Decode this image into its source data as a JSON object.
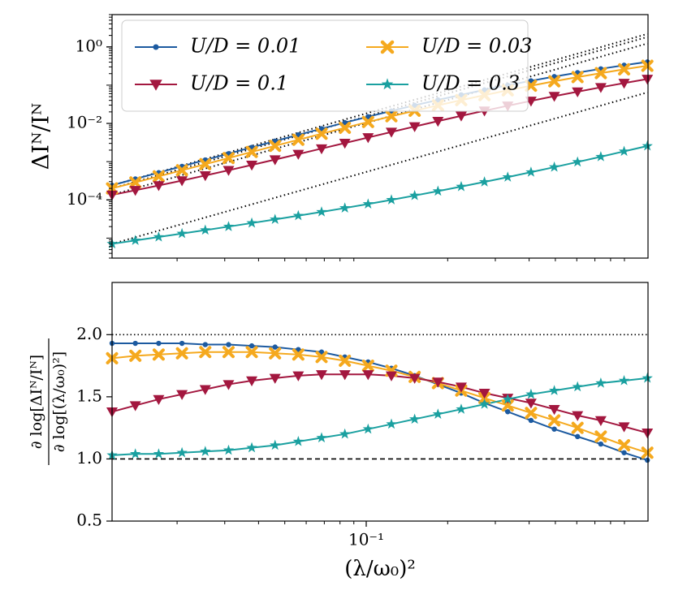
{
  "chart_data": [
    {
      "type": "line",
      "xscale": "log",
      "yscale": "log",
      "y_label": "ΔIᴺ/Iᴺ",
      "x": [
        0.0115,
        0.01402,
        0.0171,
        0.02085,
        0.02542,
        0.03099,
        0.03776,
        0.04603,
        0.0561,
        0.06839,
        0.08337,
        0.1016,
        0.1239,
        0.151,
        0.1841,
        0.2244,
        0.2735,
        0.3334,
        0.4064,
        0.4955,
        0.6039,
        0.7362,
        0.8974,
        1.094
      ],
      "xlim": [
        0.0115,
        1.1
      ],
      "ylim": [
        3e-06,
        7
      ],
      "yticks": [
        {
          "value": 1,
          "label": "10⁰"
        },
        {
          "value": 0.01,
          "label": "10⁻²"
        },
        {
          "value": 0.0001,
          "label": "10⁻⁴"
        }
      ],
      "legend": "upper left",
      "legend_columns": 2,
      "series": [
        {
          "name": "U/D = 0.01",
          "color": "#1c5aa0",
          "marker": "circle",
          "values": [
            0.00024,
            0.000352,
            0.000515,
            0.000755,
            0.001107,
            0.001618,
            0.002366,
            0.003451,
            0.00502,
            0.00728,
            0.01047,
            0.01496,
            0.02118,
            0.02972,
            0.04111,
            0.05598,
            0.07534,
            0.09954,
            0.13,
            0.1675,
            0.2128,
            0.2673,
            0.3319,
            0.4055
          ]
        },
        {
          "name": "U/D = 0.03",
          "color": "#f5a91e",
          "marker": "x",
          "values": [
            0.0002,
            0.000286,
            0.000412,
            0.000594,
            0.000857,
            0.001239,
            0.001791,
            0.002588,
            0.003733,
            0.00536,
            0.00767,
            0.01089,
            0.01535,
            0.02143,
            0.02965,
            0.04055,
            0.05483,
            0.07328,
            0.09661,
            0.1262,
            0.1626,
            0.2065,
            0.2594,
            0.3214
          ]
        },
        {
          "name": "U/D = 0.1",
          "color": "#a3173f",
          "marker": "triangle-down",
          "values": [
            0.0001349,
            0.0001782,
            0.0002377,
            0.0003199,
            0.0004345,
            0.000594,
            0.000818,
            0.001132,
            0.001574,
            0.002193,
            0.003062,
            0.004276,
            0.00596,
            0.00828,
            0.01146,
            0.01574,
            0.02143,
            0.02891,
            0.03873,
            0.0514,
            0.06745,
            0.0879,
            0.1132,
            0.1445
          ]
        },
        {
          "name": "U/D = 0.3",
          "color": "#1aa0a0",
          "marker": "star",
          "values": [
            7.08e-06,
            8.69e-06,
            1.069e-05,
            1.315e-05,
            1.618e-05,
            2e-05,
            2.477e-05,
            3.083e-05,
            3.855e-05,
            4.842e-05,
            6.12e-05,
            7.8e-05,
            0.0001002,
            0.0001297,
            0.000169,
            0.0002223,
            0.0002944,
            0.0003936,
            0.00053,
            0.000718,
            0.000979,
            0.001343,
            0.001854,
            0.002564
          ]
        }
      ],
      "reference_lines": [
        {
          "x": [
            0.0115,
            1.094
          ],
          "values": [
            0.00024,
            2.19
          ],
          "color": "#000000"
        },
        {
          "x": [
            0.0115,
            1.094
          ],
          "values": [
            0.0002,
            1.82
          ],
          "color": "#000000"
        },
        {
          "x": [
            0.0115,
            1.094
          ],
          "values": [
            0.000135,
            1.23
          ],
          "color": "#000000"
        },
        {
          "x": [
            0.0115,
            1.094
          ],
          "values": [
            7.08e-06,
            0.0646
          ],
          "color": "#000000"
        }
      ]
    },
    {
      "type": "line",
      "xscale": "log",
      "yscale": "linear",
      "x_label": "(λ/ω₀)²",
      "y_label_numerator": "∂ log[ΔIᴺ/Iᴺ]",
      "y_label_denominator": "∂ log[(λ/ω₀)²]",
      "x": [
        0.0115,
        0.01402,
        0.0171,
        0.02085,
        0.02542,
        0.03099,
        0.03776,
        0.04603,
        0.0561,
        0.06839,
        0.08337,
        0.1016,
        0.1239,
        0.151,
        0.1841,
        0.2244,
        0.2735,
        0.3334,
        0.4064,
        0.4955,
        0.6039,
        0.7362,
        0.8974,
        1.094
      ],
      "xlim": [
        0.0115,
        1.1
      ],
      "xticks": [
        {
          "value": 0.1,
          "label": "10⁻¹"
        }
      ],
      "ylim": [
        0.5,
        2.42
      ],
      "yticks": [
        {
          "value": 0.5,
          "label": "0.5"
        },
        {
          "value": 1,
          "label": "1.0"
        },
        {
          "value": 1.5,
          "label": "1.5"
        },
        {
          "value": 2,
          "label": "2.0"
        }
      ],
      "hlines": [
        {
          "value": 2,
          "style": "dotted"
        },
        {
          "value": 1,
          "style": "dashed"
        }
      ],
      "series": [
        {
          "color": "#1c5aa0",
          "marker": "circle",
          "values": [
            1.93,
            1.93,
            1.93,
            1.93,
            1.92,
            1.92,
            1.91,
            1.9,
            1.88,
            1.86,
            1.82,
            1.78,
            1.73,
            1.67,
            1.6,
            1.53,
            1.45,
            1.38,
            1.31,
            1.24,
            1.18,
            1.12,
            1.05,
            0.99
          ]
        },
        {
          "color": "#f5a91e",
          "marker": "x",
          "values": [
            1.81,
            1.83,
            1.84,
            1.85,
            1.86,
            1.86,
            1.86,
            1.85,
            1.84,
            1.82,
            1.79,
            1.75,
            1.71,
            1.66,
            1.61,
            1.55,
            1.49,
            1.43,
            1.37,
            1.31,
            1.25,
            1.18,
            1.11,
            1.05
          ]
        },
        {
          "color": "#a3173f",
          "marker": "triangle-down",
          "values": [
            1.38,
            1.43,
            1.48,
            1.52,
            1.56,
            1.6,
            1.63,
            1.65,
            1.67,
            1.68,
            1.68,
            1.68,
            1.67,
            1.65,
            1.62,
            1.58,
            1.53,
            1.49,
            1.45,
            1.4,
            1.35,
            1.31,
            1.26,
            1.21
          ]
        },
        {
          "color": "#1aa0a0",
          "marker": "star",
          "values": [
            1.03,
            1.04,
            1.04,
            1.05,
            1.06,
            1.07,
            1.09,
            1.11,
            1.14,
            1.17,
            1.2,
            1.24,
            1.28,
            1.32,
            1.36,
            1.4,
            1.44,
            1.48,
            1.52,
            1.55,
            1.58,
            1.61,
            1.63,
            1.65
          ]
        }
      ]
    }
  ]
}
